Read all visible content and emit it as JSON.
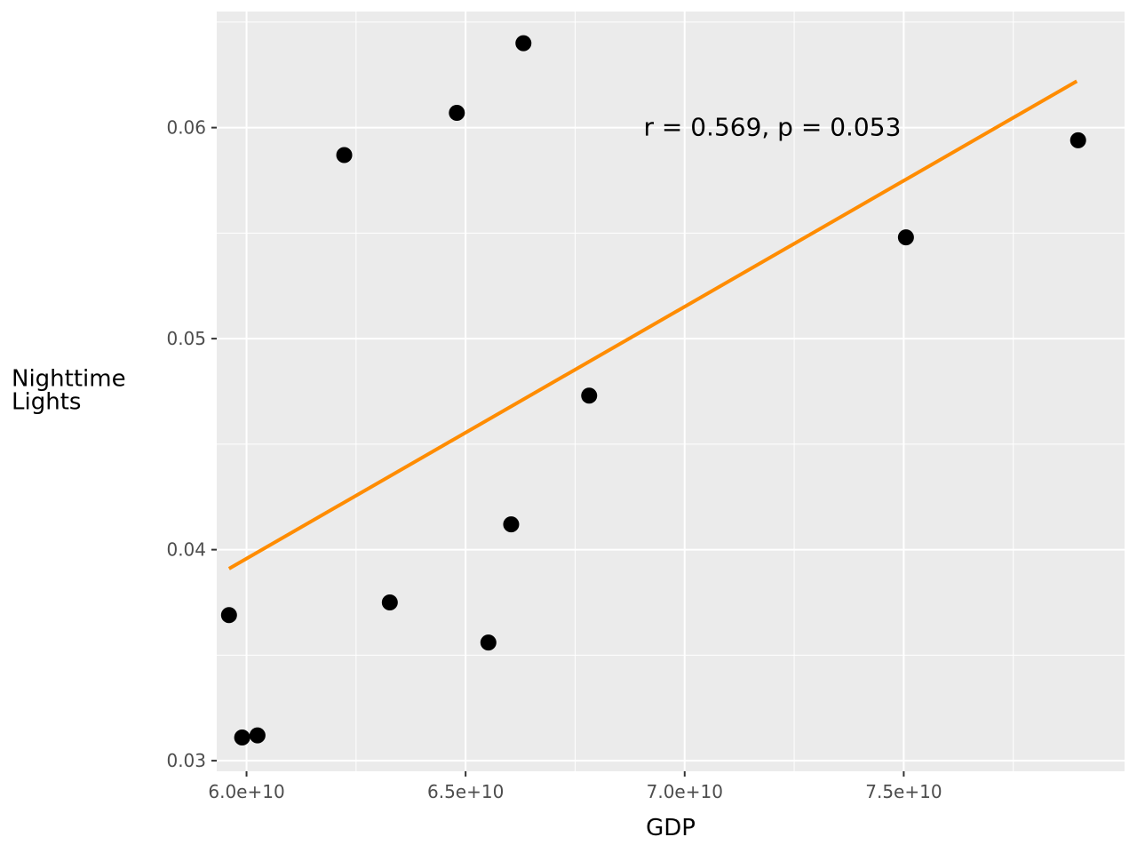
{
  "chart_data": {
    "type": "scatter",
    "title": "",
    "xlabel": "GDP",
    "ylabel": "Nighttime\nLights",
    "xlim": [
      59320000000,
      80040000000
    ],
    "ylim": [
      0.0295,
      0.0655
    ],
    "x_ticks": [
      {
        "value": 60000000000,
        "label": "6.0e+10"
      },
      {
        "value": 65000000000,
        "label": "6.5e+10"
      },
      {
        "value": 70000000000,
        "label": "7.0e+10"
      },
      {
        "value": 75000000000,
        "label": "7.5e+10"
      }
    ],
    "y_ticks": [
      {
        "value": 0.03,
        "label": "0.03"
      },
      {
        "value": 0.04,
        "label": "0.04"
      },
      {
        "value": 0.05,
        "label": "0.05"
      },
      {
        "value": 0.06,
        "label": "0.06"
      }
    ],
    "grid": true,
    "points": [
      {
        "x": 59600000000,
        "y": 0.0369
      },
      {
        "x": 59900000000,
        "y": 0.0311
      },
      {
        "x": 60250000000,
        "y": 0.0312
      },
      {
        "x": 62230000000,
        "y": 0.0587
      },
      {
        "x": 63270000000,
        "y": 0.0375
      },
      {
        "x": 64800000000,
        "y": 0.0607
      },
      {
        "x": 65520000000,
        "y": 0.0356
      },
      {
        "x": 66040000000,
        "y": 0.0412
      },
      {
        "x": 66320000000,
        "y": 0.064
      },
      {
        "x": 67820000000,
        "y": 0.0473
      },
      {
        "x": 75050000000,
        "y": 0.0548
      },
      {
        "x": 78980000000,
        "y": 0.0594
      }
    ],
    "trend_line": {
      "x": [
        59600000000,
        78950000000
      ],
      "y": [
        0.0391,
        0.0622
      ],
      "color": "#ff8c00"
    },
    "annotation": {
      "text": "r = 0.569, p = 0.053",
      "x": 72000000000,
      "y": 0.06
    },
    "colors": {
      "panel": "#ebebeb",
      "grid": "#ffffff",
      "points": "#000000",
      "trend": "#ff8c00"
    }
  }
}
